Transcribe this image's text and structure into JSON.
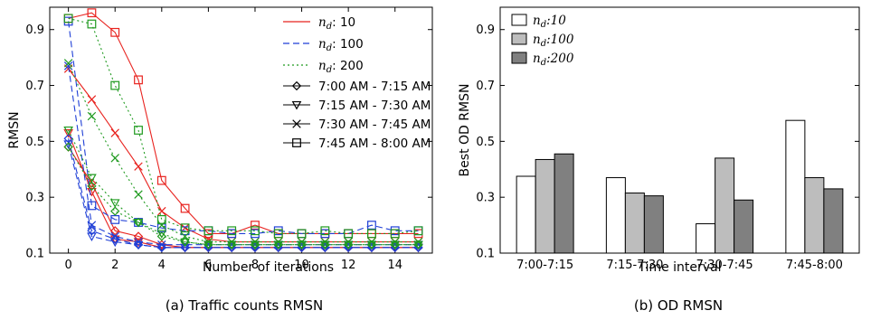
{
  "chart_data": [
    {
      "type": "line",
      "caption": "(a) Traffic counts RMSN",
      "xlabel": "Number of iterations",
      "ylabel": "RMSN",
      "xlim": [
        -0.8,
        15.6
      ],
      "ylim": [
        0.1,
        0.98
      ],
      "xticks": [
        0,
        2,
        4,
        6,
        8,
        10,
        12,
        14
      ],
      "yticks": [
        0.1,
        0.3,
        0.5,
        0.7,
        0.9
      ],
      "grid": false,
      "legend_position": "top-right",
      "legend": {
        "nd_prefix": "n",
        "nd_sub": "d",
        "nd_entries": [
          {
            "value": ": 10",
            "color": "#e8231f",
            "dash": "solid"
          },
          {
            "value": ": 100",
            "color": "#1f3fd6",
            "dash": "dashed"
          },
          {
            "value": ": 200",
            "color": "#1f9a1f",
            "dash": "dotted"
          }
        ],
        "interval_entries": [
          {
            "label": "7:00 AM - 7:15 AM",
            "marker": "diamond"
          },
          {
            "label": "7:15 AM - 7:30 AM",
            "marker": "triangle-down"
          },
          {
            "label": "7:30 AM - 7:45 AM",
            "marker": "x"
          },
          {
            "label": "7:45 AM - 8:00 AM",
            "marker": "square"
          }
        ]
      },
      "x": [
        0,
        1,
        2,
        3,
        4,
        5,
        6,
        7,
        8,
        9,
        10,
        11,
        12,
        13,
        14,
        15
      ],
      "series": [
        {
          "nd": 10,
          "interval": "7:00 AM - 7:15 AM",
          "color": "#e8231f",
          "dash": "solid",
          "marker": "diamond",
          "values": [
            0.48,
            0.35,
            0.18,
            0.16,
            0.13,
            0.12,
            0.12,
            0.12,
            0.12,
            0.12,
            0.12,
            0.12,
            0.12,
            0.12,
            0.12,
            0.12
          ]
        },
        {
          "nd": 10,
          "interval": "7:15 AM - 7:30 AM",
          "color": "#e8231f",
          "dash": "solid",
          "marker": "triangle-down",
          "values": [
            0.53,
            0.32,
            0.15,
            0.14,
            0.12,
            0.12,
            0.12,
            0.12,
            0.12,
            0.12,
            0.12,
            0.12,
            0.12,
            0.12,
            0.12,
            0.12
          ]
        },
        {
          "nd": 10,
          "interval": "7:30 AM - 7:45 AM",
          "color": "#e8231f",
          "dash": "solid",
          "marker": "x",
          "values": [
            0.76,
            0.65,
            0.53,
            0.41,
            0.25,
            0.19,
            0.15,
            0.14,
            0.14,
            0.14,
            0.14,
            0.14,
            0.14,
            0.14,
            0.14,
            0.14
          ]
        },
        {
          "nd": 10,
          "interval": "7:45 AM - 8:00 AM",
          "color": "#e8231f",
          "dash": "solid",
          "marker": "square",
          "values": [
            0.94,
            0.96,
            0.89,
            0.72,
            0.36,
            0.26,
            0.17,
            0.17,
            0.2,
            0.17,
            0.17,
            0.17,
            0.17,
            0.17,
            0.17,
            0.17
          ]
        },
        {
          "nd": 100,
          "interval": "7:00 AM - 7:15 AM",
          "color": "#1f3fd6",
          "dash": "dashed",
          "marker": "diamond",
          "values": [
            0.51,
            0.18,
            0.15,
            0.13,
            0.12,
            0.12,
            0.12,
            0.12,
            0.12,
            0.12,
            0.12,
            0.12,
            0.12,
            0.12,
            0.12,
            0.12
          ]
        },
        {
          "nd": 100,
          "interval": "7:15 AM - 7:30 AM",
          "color": "#1f3fd6",
          "dash": "dashed",
          "marker": "triangle-down",
          "values": [
            0.49,
            0.16,
            0.14,
            0.13,
            0.12,
            0.12,
            0.12,
            0.12,
            0.12,
            0.12,
            0.12,
            0.12,
            0.12,
            0.12,
            0.12,
            0.12
          ]
        },
        {
          "nd": 100,
          "interval": "7:30 AM - 7:45 AM",
          "color": "#1f3fd6",
          "dash": "dashed",
          "marker": "x",
          "values": [
            0.77,
            0.2,
            0.16,
            0.14,
            0.13,
            0.13,
            0.13,
            0.13,
            0.13,
            0.13,
            0.13,
            0.13,
            0.13,
            0.13,
            0.13,
            0.13
          ]
        },
        {
          "nd": 100,
          "interval": "7:45 AM - 8:00 AM",
          "color": "#1f3fd6",
          "dash": "dashed",
          "marker": "square",
          "values": [
            0.93,
            0.27,
            0.22,
            0.21,
            0.19,
            0.18,
            0.18,
            0.17,
            0.17,
            0.18,
            0.17,
            0.17,
            0.17,
            0.2,
            0.18,
            0.18
          ]
        },
        {
          "nd": 200,
          "interval": "7:00 AM - 7:15 AM",
          "color": "#1f9a1f",
          "dash": "dotted",
          "marker": "diamond",
          "values": [
            0.48,
            0.34,
            0.25,
            0.21,
            0.16,
            0.14,
            0.13,
            0.13,
            0.13,
            0.13,
            0.13,
            0.13,
            0.13,
            0.13,
            0.13,
            0.13
          ]
        },
        {
          "nd": 200,
          "interval": "7:15 AM - 7:30 AM",
          "color": "#1f9a1f",
          "dash": "dotted",
          "marker": "triangle-down",
          "values": [
            0.54,
            0.37,
            0.28,
            0.21,
            0.17,
            0.14,
            0.13,
            0.13,
            0.13,
            0.13,
            0.13,
            0.13,
            0.13,
            0.13,
            0.13,
            0.13
          ]
        },
        {
          "nd": 200,
          "interval": "7:30 AM - 7:45 AM",
          "color": "#1f9a1f",
          "dash": "dotted",
          "marker": "x",
          "values": [
            0.78,
            0.59,
            0.44,
            0.31,
            0.2,
            0.16,
            0.14,
            0.14,
            0.14,
            0.14,
            0.14,
            0.14,
            0.14,
            0.14,
            0.14,
            0.14
          ]
        },
        {
          "nd": 200,
          "interval": "7:45 AM - 8:00 AM",
          "color": "#1f9a1f",
          "dash": "dotted",
          "marker": "square",
          "values": [
            0.94,
            0.92,
            0.7,
            0.54,
            0.22,
            0.19,
            0.18,
            0.18,
            0.18,
            0.17,
            0.17,
            0.18,
            0.17,
            0.17,
            0.17,
            0.18
          ]
        }
      ]
    },
    {
      "type": "bar",
      "caption": "(b) OD RMSN",
      "xlabel": "Time interval",
      "ylabel": "Best OD RMSN",
      "ylim": [
        0.1,
        0.98
      ],
      "yticks": [
        0.1,
        0.3,
        0.5,
        0.7,
        0.9
      ],
      "grid": false,
      "legend_position": "top-left",
      "categories": [
        "7:00-7:15",
        "7:15-7:30",
        "7:30-7:45",
        "7:45-8:00"
      ],
      "series": [
        {
          "name": "n_d : 10",
          "nd_value": ":10",
          "color": "#ffffff",
          "values": [
            0.375,
            0.37,
            0.205,
            0.575
          ]
        },
        {
          "name": "n_d : 100",
          "nd_value": ":100",
          "color": "#bdbdbd",
          "values": [
            0.435,
            0.315,
            0.44,
            0.37
          ]
        },
        {
          "name": "n_d : 200",
          "nd_value": ":200",
          "color": "#808080",
          "values": [
            0.455,
            0.305,
            0.29,
            0.33
          ]
        }
      ]
    }
  ]
}
